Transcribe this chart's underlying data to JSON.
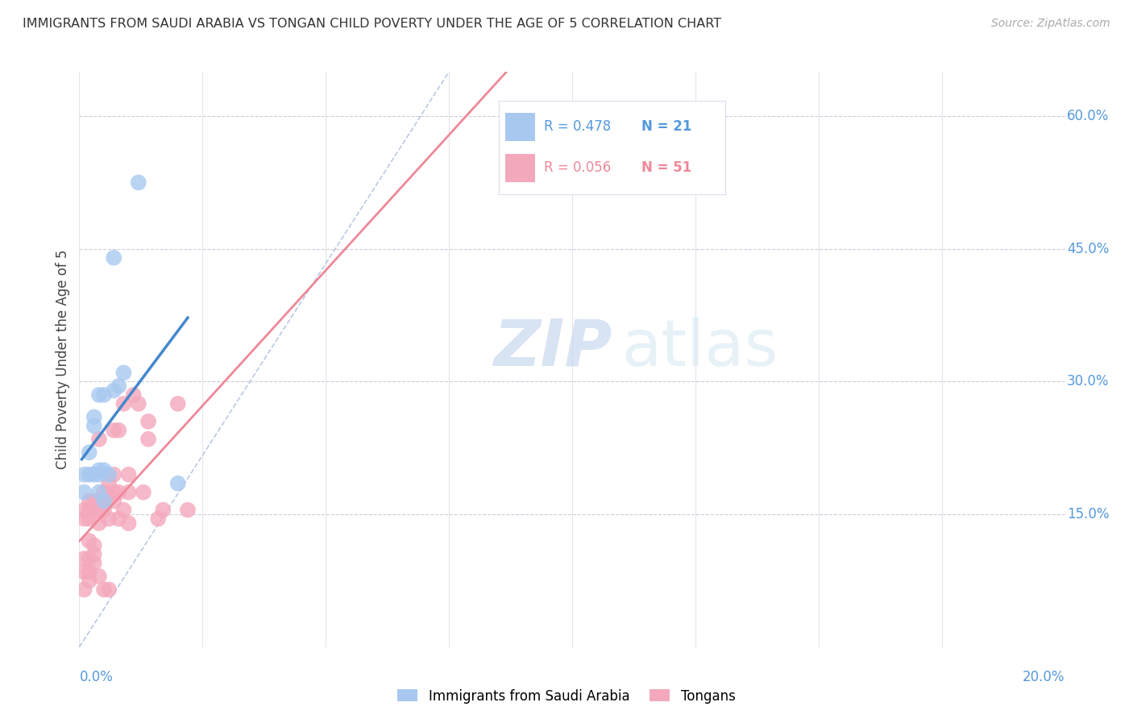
{
  "title": "IMMIGRANTS FROM SAUDI ARABIA VS TONGAN CHILD POVERTY UNDER THE AGE OF 5 CORRELATION CHART",
  "source": "Source: ZipAtlas.com",
  "ylabel": "Child Poverty Under the Age of 5",
  "right_yticks": [
    0.15,
    0.3,
    0.45,
    0.6
  ],
  "right_ytick_labels": [
    "15.0%",
    "30.0%",
    "45.0%",
    "60.0%"
  ],
  "xlim": [
    0.0,
    0.2
  ],
  "ylim": [
    0.0,
    0.65
  ],
  "blue_R": "0.478",
  "blue_N": "21",
  "pink_R": "0.056",
  "pink_N": "51",
  "blue_color": "#a8c8f0",
  "pink_color": "#f4a8bc",
  "blue_line_color": "#4488cc",
  "pink_line_color": "#ee8899",
  "diag_color": "#aabbdd",
  "watermark_zip": "ZIP",
  "watermark_atlas": "atlas",
  "blue_points_x": [
    0.001,
    0.001,
    0.002,
    0.002,
    0.003,
    0.003,
    0.003,
    0.004,
    0.004,
    0.004,
    0.004,
    0.005,
    0.005,
    0.005,
    0.006,
    0.007,
    0.007,
    0.008,
    0.009,
    0.012,
    0.02
  ],
  "blue_points_y": [
    0.175,
    0.195,
    0.195,
    0.22,
    0.195,
    0.25,
    0.26,
    0.175,
    0.195,
    0.2,
    0.285,
    0.165,
    0.2,
    0.285,
    0.195,
    0.29,
    0.44,
    0.295,
    0.31,
    0.525,
    0.185
  ],
  "pink_points_x": [
    0.001,
    0.001,
    0.001,
    0.001,
    0.001,
    0.002,
    0.002,
    0.002,
    0.002,
    0.002,
    0.002,
    0.002,
    0.003,
    0.003,
    0.003,
    0.003,
    0.003,
    0.004,
    0.004,
    0.004,
    0.004,
    0.004,
    0.005,
    0.005,
    0.005,
    0.005,
    0.006,
    0.006,
    0.006,
    0.006,
    0.007,
    0.007,
    0.007,
    0.007,
    0.008,
    0.008,
    0.008,
    0.009,
    0.009,
    0.01,
    0.01,
    0.01,
    0.011,
    0.012,
    0.013,
    0.014,
    0.014,
    0.016,
    0.017,
    0.02,
    0.022
  ],
  "pink_points_y": [
    0.065,
    0.085,
    0.1,
    0.145,
    0.155,
    0.075,
    0.085,
    0.1,
    0.12,
    0.145,
    0.155,
    0.165,
    0.095,
    0.105,
    0.115,
    0.155,
    0.165,
    0.08,
    0.14,
    0.155,
    0.165,
    0.235,
    0.065,
    0.155,
    0.165,
    0.175,
    0.065,
    0.145,
    0.17,
    0.185,
    0.165,
    0.175,
    0.195,
    0.245,
    0.145,
    0.175,
    0.245,
    0.155,
    0.275,
    0.14,
    0.175,
    0.195,
    0.285,
    0.275,
    0.175,
    0.255,
    0.235,
    0.145,
    0.155,
    0.275,
    0.155
  ],
  "xtick_positions": [
    0.0,
    0.025,
    0.05,
    0.075,
    0.1,
    0.125,
    0.15,
    0.175,
    0.2
  ],
  "grid_yticks": [
    0.15,
    0.3,
    0.45,
    0.6
  ]
}
